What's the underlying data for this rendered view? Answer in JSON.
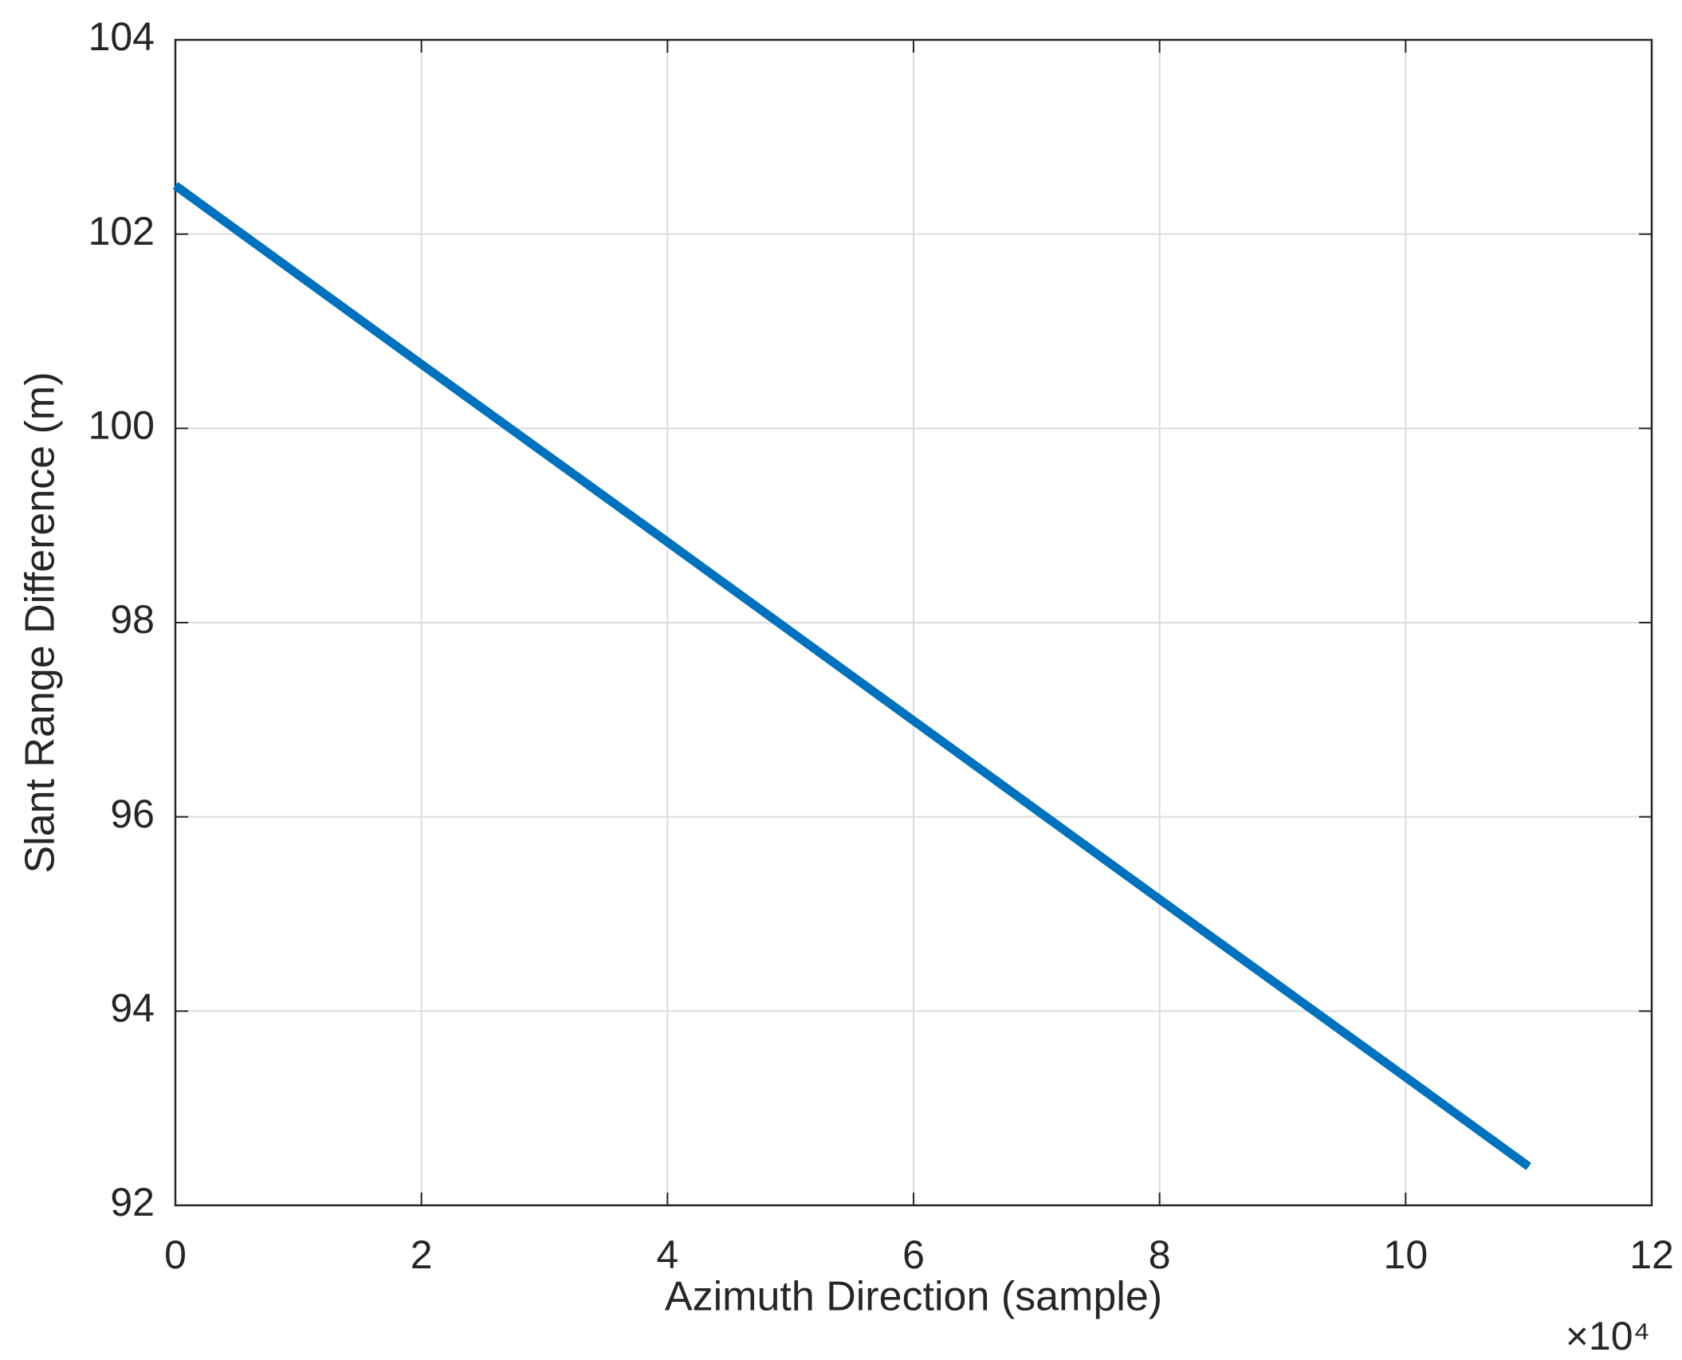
{
  "chart_data": {
    "type": "line",
    "xlabel": "Azimuth Direction (sample)",
    "ylabel": "Slant Range Difference (m)",
    "x_exponent_label": "×10⁴",
    "x": [
      0,
      20000,
      40000,
      60000,
      80000,
      100000,
      110000
    ],
    "series": [
      {
        "name": "Slant Range Difference",
        "color": "#0072bd",
        "values": [
          102.5,
          100.66,
          98.83,
          96.99,
          95.15,
          93.32,
          92.4
        ]
      }
    ],
    "xlim": [
      0,
      120000
    ],
    "xticks": [
      {
        "value": 0,
        "label": "0"
      },
      {
        "value": 20000,
        "label": "2"
      },
      {
        "value": 40000,
        "label": "4"
      },
      {
        "value": 60000,
        "label": "6"
      },
      {
        "value": 80000,
        "label": "8"
      },
      {
        "value": 100000,
        "label": "10"
      },
      {
        "value": 120000,
        "label": "12"
      }
    ],
    "ylim": [
      92,
      104
    ],
    "yticks": [
      92,
      94,
      96,
      98,
      100,
      102,
      104
    ],
    "grid": true
  }
}
